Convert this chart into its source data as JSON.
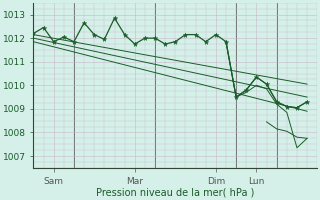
{
  "bg_color": "#d4f0e8",
  "plot_bg": "#d4f0e8",
  "grid_color": "#c8b8c8",
  "line_color": "#1a5c2a",
  "xlabel": "Pression niveau de la mer( hPa )",
  "ylim": [
    1006.5,
    1013.5
  ],
  "yticks": [
    1007,
    1008,
    1009,
    1010,
    1011,
    1012,
    1013
  ],
  "xtick_labels": [
    "Sam",
    "Mar",
    "Dim",
    "Lun"
  ],
  "xtick_positions": [
    0.5,
    2.5,
    4.5,
    5.5
  ],
  "xmin": 0.0,
  "xmax": 7.0,
  "main_x": [
    0.0,
    0.25,
    0.5,
    0.75,
    1.0,
    1.25,
    1.5,
    1.75,
    2.0,
    2.25,
    2.5,
    2.75,
    3.0,
    3.25,
    3.5,
    3.75,
    4.0,
    4.25,
    4.5,
    4.75,
    5.0,
    5.25,
    5.5,
    5.75,
    6.0,
    6.25,
    6.5,
    6.75
  ],
  "main_y": [
    1012.2,
    1012.45,
    1011.85,
    1012.05,
    1011.85,
    1012.65,
    1012.15,
    1011.95,
    1012.85,
    1012.15,
    1011.75,
    1012.0,
    1012.0,
    1011.75,
    1011.85,
    1012.15,
    1012.15,
    1011.85,
    1012.15,
    1011.85,
    1009.5,
    1009.8,
    1010.35,
    1010.05,
    1009.3,
    1009.1,
    1009.05,
    1009.3
  ],
  "trend1_x": [
    0.0,
    6.75
  ],
  "trend1_y": [
    1012.15,
    1010.05
  ],
  "trend2_x": [
    0.0,
    6.75
  ],
  "trend2_y": [
    1012.0,
    1009.5
  ],
  "trend3_x": [
    0.0,
    6.75
  ],
  "trend3_y": [
    1011.85,
    1008.9
  ],
  "right_x": [
    4.75,
    5.0,
    5.25,
    5.5,
    5.75,
    6.0,
    6.25,
    6.5,
    6.75
  ],
  "right_y": [
    1011.85,
    1009.5,
    1009.8,
    1010.35,
    1010.05,
    1009.3,
    1009.1,
    1009.05,
    1009.3
  ],
  "right2_x": [
    4.75,
    5.0,
    5.25,
    5.5,
    5.75,
    6.0,
    6.25,
    6.5,
    6.75
  ],
  "right2_y": [
    1011.85,
    1009.5,
    1009.7,
    1010.0,
    1009.85,
    1009.2,
    1008.85,
    1007.35,
    1007.75
  ],
  "right3_x": [
    5.75,
    6.0,
    6.25,
    6.5,
    6.75
  ],
  "right3_y": [
    1008.45,
    1008.15,
    1008.05,
    1007.8,
    1007.75
  ]
}
